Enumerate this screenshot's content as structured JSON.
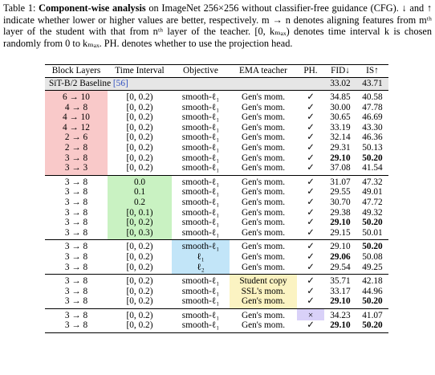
{
  "caption": {
    "label": "Table 1:",
    "title": "Component-wise analysis",
    "text": "on ImageNet 256×256 without classifier-free guidance (CFG). ↓ and ↑ indicate whether lower or higher values are better, respectively. m → n denotes aligning features from mᵗʰ layer of the student with that from nᵗʰ layer of the teacher. [0, kₘₐₓ) denotes time interval k is chosen randomly from 0 to kₘₐₓ. PH. denotes whether to use the projection head."
  },
  "table": {
    "columns": [
      "Block Layers",
      "Time Interval",
      "Objective",
      "EMA teacher",
      "PH.",
      "FID↓",
      "IS↑"
    ],
    "baseline": {
      "name": "SiT-B/2 Baseline",
      "ref": "[56]",
      "fid": "33.02",
      "is": "43.71"
    },
    "groups": [
      {
        "highlight": {
          "column": 0,
          "color": "#f9c9c9"
        },
        "rows": [
          [
            "6 → 10",
            "[0, 0.2)",
            "smooth-ℓ₁",
            "Gen's mom.",
            "✓",
            "34.85",
            "40.58"
          ],
          [
            "4 → 8",
            "[0, 0.2)",
            "smooth-ℓ₁",
            "Gen's mom.",
            "✓",
            "30.00",
            "47.78"
          ],
          [
            "4 → 10",
            "[0, 0.2)",
            "smooth-ℓ₁",
            "Gen's mom.",
            "✓",
            "30.65",
            "46.69"
          ],
          [
            "4 → 12",
            "[0, 0.2)",
            "smooth-ℓ₁",
            "Gen's mom.",
            "✓",
            "33.19",
            "43.30"
          ],
          [
            "2 → 6",
            "[0, 0.2)",
            "smooth-ℓ₁",
            "Gen's mom.",
            "✓",
            "32.14",
            "46.36"
          ],
          [
            "2 → 8",
            "[0, 0.2)",
            "smooth-ℓ₁",
            "Gen's mom.",
            "✓",
            "29.31",
            "50.13"
          ],
          [
            "3 → 8",
            "[0, 0.2)",
            "smooth-ℓ₁",
            "Gen's mom.",
            "✓",
            "29.10",
            "50.20"
          ],
          [
            "3 → 3",
            "[0, 0.2)",
            "smooth-ℓ₁",
            "Gen's mom.",
            "✓",
            "37.08",
            "41.54"
          ]
        ]
      },
      {
        "highlight": {
          "column": 1,
          "color": "#c9f2c2"
        },
        "rows": [
          [
            "3 → 8",
            "0.0",
            "smooth-ℓ₁",
            "Gen's mom.",
            "✓",
            "31.07",
            "47.32"
          ],
          [
            "3 → 8",
            "0.1",
            "smooth-ℓ₁",
            "Gen's mom.",
            "✓",
            "29.55",
            "49.01"
          ],
          [
            "3 → 8",
            "0.2",
            "smooth-ℓ₁",
            "Gen's mom.",
            "✓",
            "30.70",
            "47.72"
          ],
          [
            "3 → 8",
            "[0, 0.1)",
            "smooth-ℓ₁",
            "Gen's mom.",
            "✓",
            "29.38",
            "49.32"
          ],
          [
            "3 → 8",
            "[0, 0.2)",
            "smooth-ℓ₁",
            "Gen's mom.",
            "✓",
            "29.10",
            "50.20"
          ],
          [
            "3 → 8",
            "[0, 0.3)",
            "smooth-ℓ₁",
            "Gen's mom.",
            "✓",
            "29.15",
            "50.01"
          ]
        ]
      },
      {
        "highlight": {
          "column": 2,
          "color": "#c2e5f8"
        },
        "rows": [
          [
            "3 → 8",
            "[0, 0.2)",
            "smooth-ℓ₁",
            "Gen's mom.",
            "✓",
            "29.10",
            "50.20"
          ],
          [
            "3 → 8",
            "[0, 0.2)",
            "ℓ₁",
            "Gen's mom.",
            "✓",
            "29.06",
            "50.08"
          ],
          [
            "3 → 8",
            "[0, 0.2)",
            "ℓ₂",
            "Gen's mom.",
            "✓",
            "29.54",
            "49.25"
          ]
        ]
      },
      {
        "highlight": {
          "column": 3,
          "color": "#fbf3c2"
        },
        "rows": [
          [
            "3 → 8",
            "[0, 0.2)",
            "smooth-ℓ₁",
            "Student copy",
            "✓",
            "35.71",
            "42.18"
          ],
          [
            "3 → 8",
            "[0, 0.2)",
            "smooth-ℓ₁",
            "SSL's mom.",
            "✓",
            "33.17",
            "44.96"
          ],
          [
            "3 → 8",
            "[0, 0.2)",
            "smooth-ℓ₁",
            "Gen's mom.",
            "✓",
            "29.10",
            "50.20"
          ]
        ]
      },
      {
        "highlight": {
          "column": 4,
          "color": "#d9d1f8",
          "rows": [
            0
          ]
        },
        "rows": [
          [
            "3 → 8",
            "[0, 0.2)",
            "smooth-ℓ₁",
            "Gen's mom.",
            "×",
            "34.23",
            "41.07"
          ],
          [
            "3 → 8",
            "[0, 0.2)",
            "smooth-ℓ₁",
            "Gen's mom.",
            "✓",
            "29.10",
            "50.20"
          ]
        ]
      }
    ]
  }
}
